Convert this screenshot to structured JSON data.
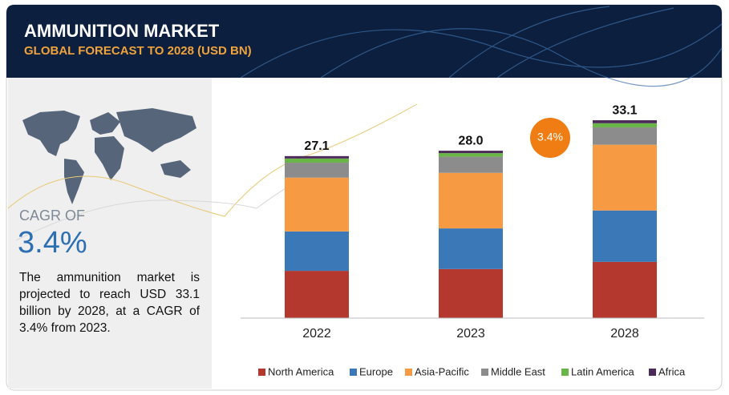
{
  "header": {
    "title": "AMMUNITION MARKET",
    "subtitle": "GLOBAL FORECAST TO 2028 (USD BN)"
  },
  "sidebar": {
    "cagr_label": "CAGR OF",
    "cagr_value": "3.4%",
    "description": "The ammunition market is projected to reach USD 33.1 billion by 2028, at a CAGR of 3.4% from 2023."
  },
  "chart_data": {
    "type": "stacked_bar",
    "categories": [
      "2022",
      "2023",
      "2028"
    ],
    "series": [
      {
        "name": "North America",
        "color": "#b5382f",
        "values": [
          7.9,
          8.2,
          9.4
        ]
      },
      {
        "name": "Europe",
        "color": "#3a78b8",
        "values": [
          6.6,
          6.8,
          8.6
        ]
      },
      {
        "name": "Asia-Pacific",
        "color": "#f79a44",
        "values": [
          9.0,
          9.3,
          11.0
        ]
      },
      {
        "name": "Middle East",
        "color": "#8c8c8c",
        "values": [
          2.5,
          2.7,
          2.9
        ]
      },
      {
        "name": "Latin America",
        "color": "#6ab547",
        "values": [
          0.7,
          0.6,
          0.7
        ]
      },
      {
        "name": "Africa",
        "color": "#4b2a5a",
        "values": [
          0.4,
          0.4,
          0.5
        ]
      }
    ],
    "totals": [
      27.1,
      28.0,
      33.1
    ],
    "totals_labels": [
      "27.1",
      "28.0",
      "33.1"
    ],
    "cagr_bubble": "3.4%"
  }
}
